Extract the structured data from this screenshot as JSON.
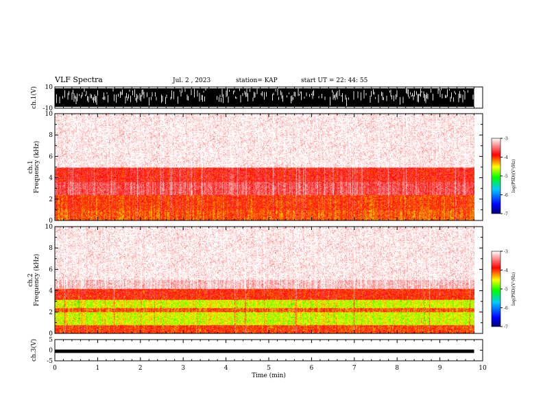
{
  "header": {
    "title": "VLF Spectra",
    "date": "Jul. 2 , 2023",
    "station": "station= KAP",
    "start": "start UT = 22: 44: 55"
  },
  "chart_data": [
    {
      "type": "line",
      "name": "ch1-waveform",
      "ylabel": "ch.1(V)",
      "ylim": [
        -10,
        10
      ],
      "yticks": [
        "10",
        "-10"
      ],
      "xlim": [
        0,
        10
      ],
      "description_values": "saturated dense waveform spanning about -10 to 10 V over 0 to ~9.8 min"
    },
    {
      "type": "heatmap",
      "name": "ch1-spectrogram",
      "ylabel": "ch.1 Frequency (kHz)",
      "ylim": [
        0,
        10
      ],
      "yticks": [
        "0",
        "2",
        "4",
        "6",
        "8",
        "10"
      ],
      "xlim": [
        0,
        10
      ],
      "data_end_min": 9.8,
      "colorbar": {
        "label": "log(PSD)(V²/Hz)",
        "range": [
          -7,
          -3
        ],
        "ticks": [
          "-3",
          "-4",
          "-5",
          "-6",
          "-7"
        ],
        "colors": [
          "#000080",
          "#0000ff",
          "#00ffff",
          "#00ff00",
          "#ffff00",
          "#ff0000",
          "#ffffff"
        ]
      },
      "bands": [
        {
          "from_khz": 0,
          "to_khz": 1,
          "level": -4.1
        },
        {
          "from_khz": 1,
          "to_khz": 2.4,
          "level": -4.0
        },
        {
          "from_khz": 2.4,
          "to_khz": 3.6,
          "level": -3.6
        },
        {
          "from_khz": 3.6,
          "to_khz": 5.0,
          "level": -3.8
        },
        {
          "from_khz": 5.0,
          "to_khz": 10,
          "level": -3.2
        }
      ]
    },
    {
      "type": "heatmap",
      "name": "ch2-spectrogram",
      "ylabel": "ch.2 Frequency (kHz)",
      "ylim": [
        0,
        10
      ],
      "yticks": [
        "0",
        "2",
        "4",
        "6",
        "8",
        "10"
      ],
      "xlim": [
        0,
        10
      ],
      "data_end_min": 9.8,
      "colorbar": {
        "label": "log(PSD)(V²/Hz)",
        "range": [
          -7,
          -3
        ],
        "ticks": [
          "-3",
          "-4",
          "-5",
          "-6",
          "-7"
        ]
      },
      "bands": [
        {
          "from_khz": 0,
          "to_khz": 0.8,
          "level": -4.0
        },
        {
          "from_khz": 0.8,
          "to_khz": 2.0,
          "level": -4.6
        },
        {
          "from_khz": 2.0,
          "to_khz": 2.4,
          "level": -4.1
        },
        {
          "from_khz": 2.4,
          "to_khz": 3.2,
          "level": -4.6
        },
        {
          "from_khz": 3.2,
          "to_khz": 4.2,
          "level": -3.9
        },
        {
          "from_khz": 4.2,
          "to_khz": 10,
          "level": -3.2
        }
      ]
    },
    {
      "type": "line",
      "name": "ch3-waveform",
      "ylabel": "ch.3(V)",
      "ylim": [
        -5,
        5
      ],
      "yticks": [
        "5",
        "0",
        "-5"
      ],
      "xlim": [
        0,
        10
      ],
      "description_values": "narrow band around -0.5 V from 0 to ~9.8 min"
    }
  ],
  "xaxis": {
    "label": "Time (min)",
    "ticks": [
      "0",
      "1",
      "2",
      "3",
      "4",
      "5",
      "6",
      "7",
      "8",
      "9",
      "10"
    ]
  }
}
